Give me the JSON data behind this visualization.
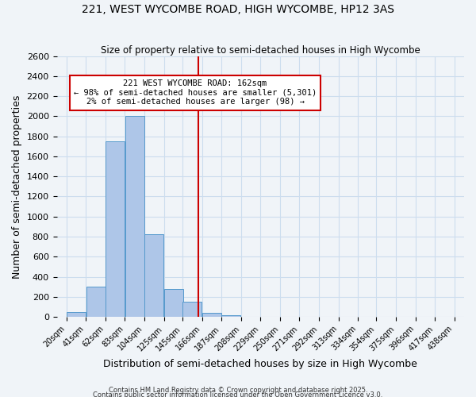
{
  "title": "221, WEST WYCOMBE ROAD, HIGH WYCOMBE, HP12 3AS",
  "subtitle": "Size of property relative to semi-detached houses in High Wycombe",
  "xlabel": "Distribution of semi-detached houses by size in High Wycombe",
  "ylabel": "Number of semi-detached properties",
  "bin_labels": [
    "20sqm",
    "41sqm",
    "62sqm",
    "83sqm",
    "104sqm",
    "125sqm",
    "145sqm",
    "166sqm",
    "187sqm",
    "208sqm",
    "229sqm",
    "250sqm",
    "271sqm",
    "292sqm",
    "313sqm",
    "334sqm",
    "354sqm",
    "375sqm",
    "396sqm",
    "417sqm",
    "438sqm"
  ],
  "bin_edges": [
    20,
    41,
    62,
    83,
    104,
    125,
    145,
    166,
    187,
    208,
    229,
    250,
    271,
    292,
    313,
    334,
    354,
    375,
    396,
    417,
    438
  ],
  "bar_heights": [
    50,
    300,
    1750,
    2000,
    820,
    280,
    150,
    40,
    20,
    0,
    0,
    0,
    0,
    0,
    0,
    0,
    0,
    0,
    0,
    0
  ],
  "bar_color": "#aec6e8",
  "bar_edge_color": "#5599cc",
  "property_size": 162,
  "vline_color": "#cc0000",
  "annotation_title": "221 WEST WYCOMBE ROAD: 162sqm",
  "annotation_line1": "← 98% of semi-detached houses are smaller (5,301)",
  "annotation_line2": "2% of semi-detached houses are larger (98) →",
  "annotation_box_color": "#ffffff",
  "annotation_box_edge_color": "#cc0000",
  "ylim": [
    0,
    2600
  ],
  "yticks": [
    0,
    200,
    400,
    600,
    800,
    1000,
    1200,
    1400,
    1600,
    1800,
    2000,
    2200,
    2400,
    2600
  ],
  "grid_color": "#ccddee",
  "background_color": "#f0f4f8",
  "footer1": "Contains HM Land Registry data © Crown copyright and database right 2025.",
  "footer2": "Contains public sector information licensed under the Open Government Licence v3.0."
}
